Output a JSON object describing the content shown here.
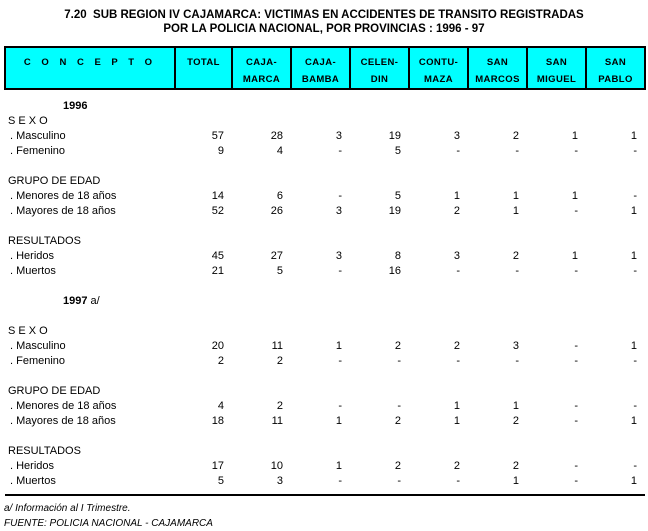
{
  "title": {
    "line1": "7.20  SUB REGION IV CAJAMARCA: VICTIMAS EN ACCIDENTES DE TRANSITO REGISTRADAS",
    "line2": "POR LA POLICIA NACIONAL, POR PROVINCIAS : 1996 - 97"
  },
  "colors": {
    "header_bg": "#00FFFF",
    "border": "#000000",
    "text": "#000000"
  },
  "table": {
    "columns": [
      {
        "line1": "C O N C E P T O",
        "line2": ""
      },
      {
        "line1": "TOTAL",
        "line2": ""
      },
      {
        "line1": "CAJA-",
        "line2": "MARCA"
      },
      {
        "line1": "CAJA-",
        "line2": "BAMBA"
      },
      {
        "line1": "CELEN-",
        "line2": "DIN"
      },
      {
        "line1": "CONTU-",
        "line2": "MAZA"
      },
      {
        "line1": "SAN",
        "line2": "MARCOS"
      },
      {
        "line1": "SAN",
        "line2": "MIGUEL"
      },
      {
        "line1": "SAN",
        "line2": "PABLO"
      }
    ],
    "rows": [
      {
        "type": "year",
        "label": "1996"
      },
      {
        "type": "section",
        "label": "S E X O"
      },
      {
        "type": "data",
        "label": ". Masculino",
        "values": [
          "57",
          "28",
          "3",
          "19",
          "3",
          "2",
          "1",
          "1"
        ]
      },
      {
        "type": "data",
        "label": ". Femenino",
        "values": [
          "9",
          "4",
          "-",
          "5",
          "-",
          "-",
          "-",
          "-"
        ]
      },
      {
        "type": "blank",
        "label": ""
      },
      {
        "type": "section",
        "label": "GRUPO DE EDAD"
      },
      {
        "type": "data",
        "label": ". Menores de 18 años",
        "values": [
          "14",
          "6",
          "-",
          "5",
          "1",
          "1",
          "1",
          "-"
        ]
      },
      {
        "type": "data",
        "label": ". Mayores de 18 años",
        "values": [
          "52",
          "26",
          "3",
          "19",
          "2",
          "1",
          "-",
          "1"
        ]
      },
      {
        "type": "blank",
        "label": ""
      },
      {
        "type": "section",
        "label": "RESULTADOS"
      },
      {
        "type": "data",
        "label": ". Heridos",
        "values": [
          "45",
          "27",
          "3",
          "8",
          "3",
          "2",
          "1",
          "1"
        ]
      },
      {
        "type": "data",
        "label": ". Muertos",
        "values": [
          "21",
          "5",
          "-",
          "16",
          "-",
          "-",
          "-",
          "-"
        ]
      },
      {
        "type": "blank",
        "label": ""
      },
      {
        "type": "year",
        "label": "1997",
        "suffix": " a/"
      },
      {
        "type": "blank",
        "label": ""
      },
      {
        "type": "section",
        "label": "S E X O"
      },
      {
        "type": "data",
        "label": ". Masculino",
        "values": [
          "20",
          "11",
          "1",
          "2",
          "2",
          "3",
          "-",
          "1"
        ]
      },
      {
        "type": "data",
        "label": ". Femenino",
        "values": [
          "2",
          "2",
          "-",
          "-",
          "-",
          "-",
          "-",
          "-"
        ]
      },
      {
        "type": "blank",
        "label": ""
      },
      {
        "type": "section",
        "label": "GRUPO DE EDAD"
      },
      {
        "type": "data",
        "label": ". Menores de 18 años",
        "values": [
          "4",
          "2",
          "-",
          "-",
          "1",
          "1",
          "-",
          "-"
        ]
      },
      {
        "type": "data",
        "label": ". Mayores de 18 años",
        "values": [
          "18",
          "11",
          "1",
          "2",
          "1",
          "2",
          "-",
          "1"
        ]
      },
      {
        "type": "blank",
        "label": ""
      },
      {
        "type": "section",
        "label": "RESULTADOS"
      },
      {
        "type": "data",
        "label": ". Heridos",
        "values": [
          "17",
          "10",
          "1",
          "2",
          "2",
          "2",
          "-",
          "-"
        ]
      },
      {
        "type": "data",
        "label": ". Muertos",
        "values": [
          "5",
          "3",
          "-",
          "-",
          "-",
          "1",
          "-",
          "1"
        ]
      }
    ]
  },
  "footnotes": {
    "note1": "a/ Información al I Trimestre.",
    "note2": "FUENTE: POLICIA NACIONAL - CAJAMARCA"
  }
}
